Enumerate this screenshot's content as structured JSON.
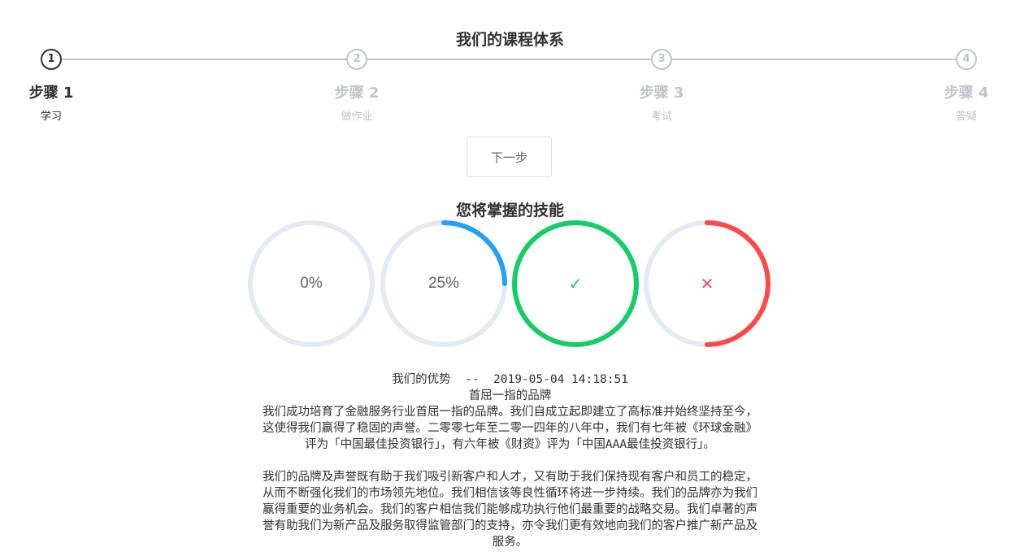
{
  "steps_section": {
    "title": "我们的课程体系",
    "steps": [
      {
        "number": "1",
        "title": "步骤 1",
        "description": "学习",
        "status": "active"
      },
      {
        "number": "2",
        "title": "步骤 2",
        "description": "做作业",
        "status": "pending"
      },
      {
        "number": "3",
        "title": "步骤 3",
        "description": "考试",
        "status": "pending"
      },
      {
        "number": "4",
        "title": "步骤 4",
        "description": "答疑",
        "status": "pending"
      }
    ],
    "next_button_label": "下一步"
  },
  "skills_section": {
    "title": "您将掌握的技能",
    "progress": [
      {
        "label": "0%",
        "percent": 0,
        "status": "normal",
        "color": "#409eff"
      },
      {
        "label": "25%",
        "percent": 25,
        "status": "normal",
        "color": "#20a0ff"
      },
      {
        "label": "✓",
        "percent": 100,
        "status": "success",
        "color": "#13ce66"
      },
      {
        "label": "✕",
        "percent": 50,
        "status": "exception",
        "color": "#ff4949"
      }
    ],
    "track_color": "#e5e9f2"
  },
  "article": {
    "header": "我们的优势  --  2019-05-04 14:18:51",
    "subtitle": "首屈一指的品牌",
    "paragraph1_lines": [
      "我们成功培育了金融服务行业首屈一指的品牌。我们自成立起即建立了高标准并始终坚持至今，",
      "这使得我们赢得了稳固的声誉。二零零七年至二零一四年的八年中，我们有七年被《环球金融》",
      "评为「中国最佳投资银行」，有六年被《财资》评为「中国AAA最佳投资银行」。"
    ],
    "paragraph2_lines": [
      "我们的品牌及声誉既有助于我们吸引新客户和人才，又有助于我们保持现有客户和员工的稳定，",
      "从而不断强化我们的市场领先地位。我们相信该等良性循环将进一步持续。我们的品牌亦为我们",
      "赢得重要的业务机会。我们的客户相信我们能够成功执行他们最重要的战略交易。我们卓著的声",
      "誉有助我们为新产品及服务取得监管部门的支持，亦令我们更有效地向我们的客户推广新产品及",
      "服务。"
    ]
  }
}
